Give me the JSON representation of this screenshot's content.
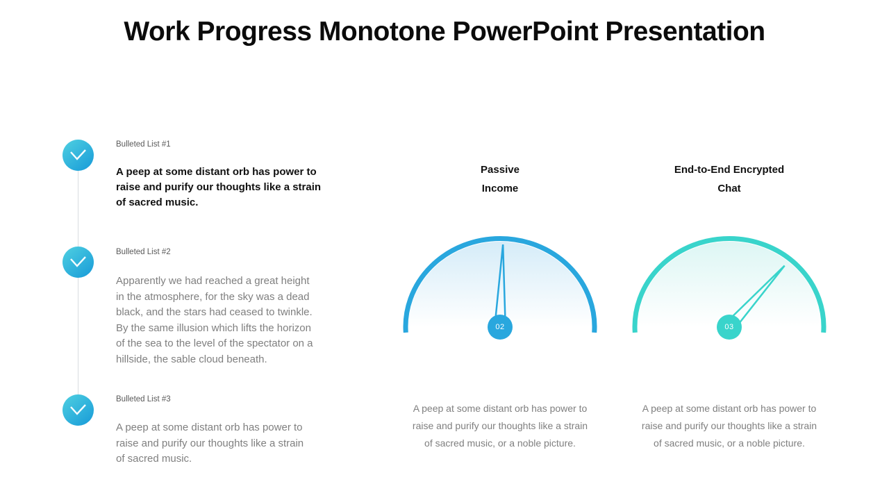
{
  "title": "Work Progress Monotone PowerPoint Presentation",
  "palette": {
    "blue_accent": "#29A7DE",
    "teal_accent": "#39D4CB",
    "body_text": "#7F7F7F",
    "label_text": "#595959",
    "icon_gradient": [
      "#4FD0E1",
      "#179AD8"
    ]
  },
  "bulleted_list": {
    "items": [
      {
        "label": "Bulleted List #1",
        "style": "bold",
        "lines": [
          "A peep at some distant orb has power to",
          "raise and purify our thoughts like a strain",
          "of sacred music."
        ]
      },
      {
        "label": "Bulleted List #2",
        "style": "normal",
        "lines": [
          "Apparently we had reached a great height",
          "in the atmosphere, for the sky was a dead",
          "black, and the stars had ceased to twinkle.",
          "By the same illusion which lifts the horizon",
          "of the sea to the level of the spectator on a",
          "hillside, the sable cloud beneath."
        ]
      },
      {
        "label": "Bulleted List #3",
        "style": "normal",
        "lines": [
          "A peep at some distant orb has power to",
          "raise and purify our thoughts like a strain",
          "of sacred music."
        ]
      }
    ]
  },
  "gauges": [
    {
      "title_lines": [
        "Passive",
        "Income"
      ],
      "badge": "02",
      "needle_angle_deg": 2,
      "accent_color": "#29A7DE",
      "fill_top_color": "#D5ECF8",
      "caption_lines": [
        "A peep at some distant orb has power to",
        "raise and purify our thoughts like a strain",
        "of sacred music, or a noble picture."
      ]
    },
    {
      "title_lines": [
        "End-to-End Encrypted",
        "Chat"
      ],
      "badge": "03",
      "needle_angle_deg": 42,
      "accent_color": "#39D4CB",
      "fill_top_color": "#DDF6F4",
      "caption_lines": [
        "A peep at some distant orb has power to",
        "raise and purify our thoughts like a strain",
        "of sacred music, or a noble picture."
      ]
    }
  ]
}
